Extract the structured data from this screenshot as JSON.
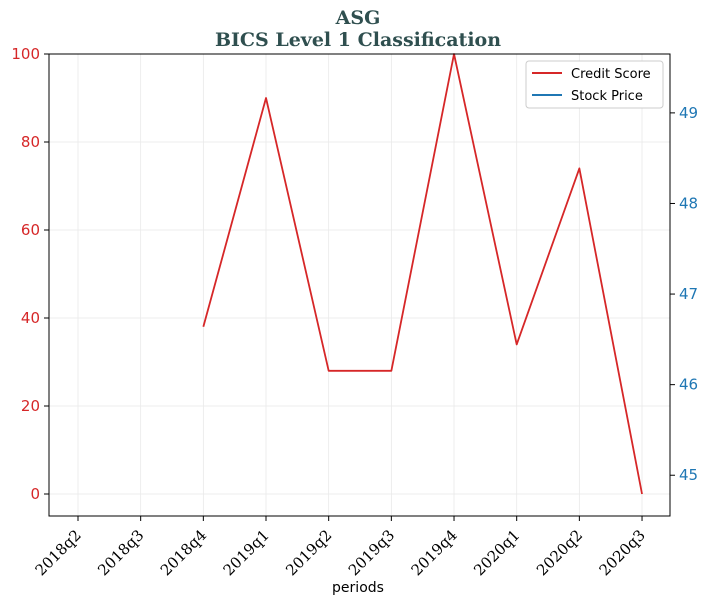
{
  "chart_data": {
    "type": "line",
    "title_line1": "ASG",
    "title_line2": "BICS Level 1 Classification",
    "xlabel": "periods",
    "categories": [
      "2018q2",
      "2018q3",
      "2018q4",
      "2019q1",
      "2019q2",
      "2019q3",
      "2019q4",
      "2020q1",
      "2020q2",
      "2020q3"
    ],
    "series": [
      {
        "name": "Credit Score",
        "axis": "left",
        "color": "#d62728",
        "values": [
          null,
          null,
          38,
          90,
          28,
          28,
          100,
          34,
          74,
          0
        ]
      },
      {
        "name": "Stock Price",
        "axis": "right",
        "color": "#1f77b4",
        "values": [
          null,
          null,
          null,
          null,
          null,
          null,
          null,
          null,
          null,
          null
        ]
      }
    ],
    "y_left": {
      "ylim": [
        -5,
        100
      ],
      "ticks": [
        0,
        20,
        40,
        60,
        80,
        100
      ],
      "color": "#d62728"
    },
    "y_right": {
      "ylim": [
        44.55,
        49.65
      ],
      "ticks": [
        45,
        46,
        47,
        48,
        49
      ],
      "color": "#1f77b4"
    },
    "grid": true,
    "legend_position": "top-right"
  }
}
